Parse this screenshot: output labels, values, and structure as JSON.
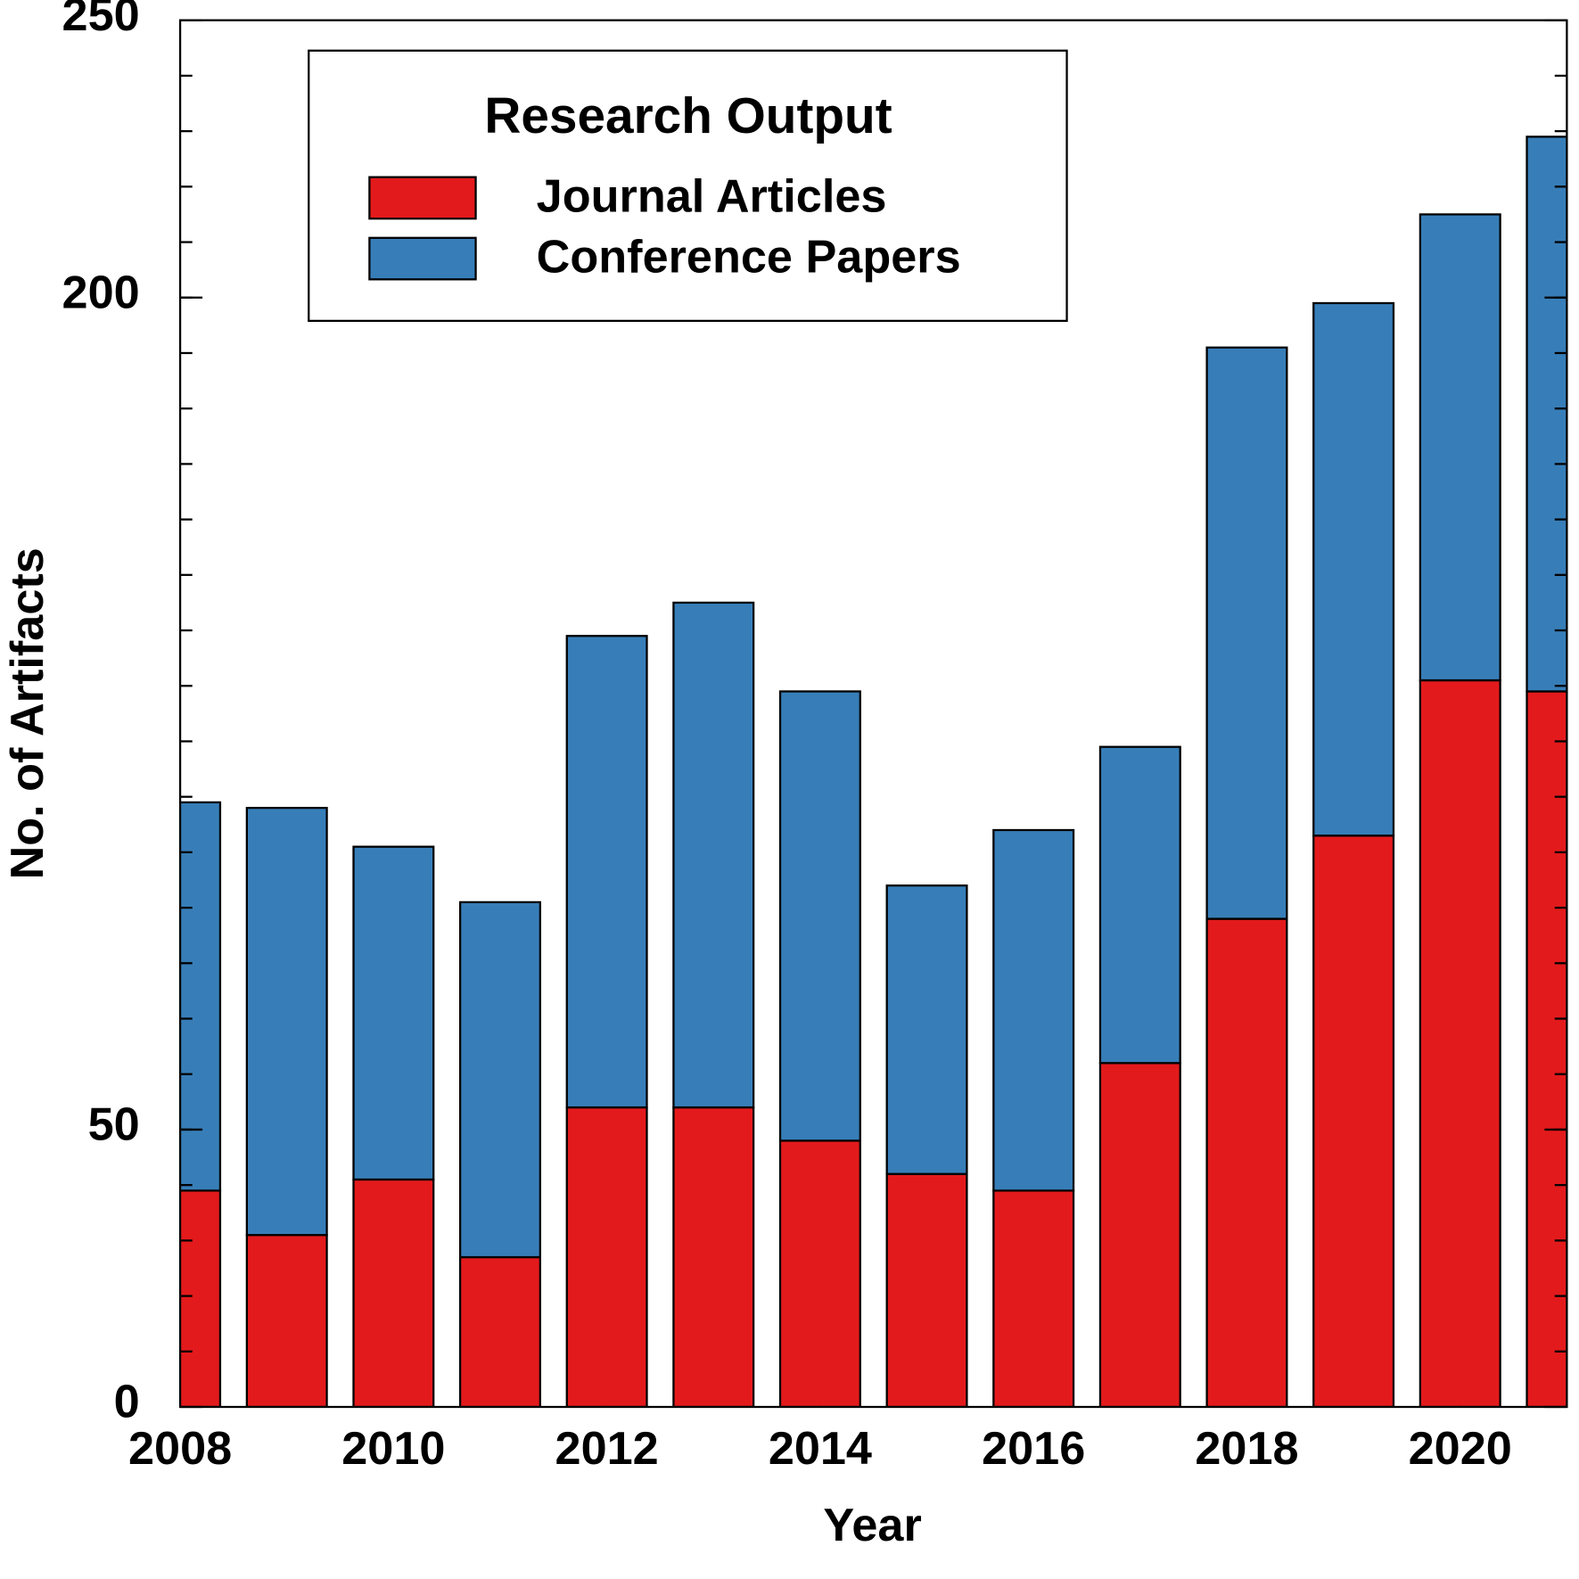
{
  "chart_data": {
    "type": "stacked_bar",
    "legend_title": "Research Output",
    "x_label": "Year",
    "y_label": "No. of Artifacts",
    "x": [
      2008,
      2009,
      2010,
      2011,
      2012,
      2013,
      2014,
      2015,
      2016,
      2017,
      2018,
      2019,
      2020,
      2021
    ],
    "series": [
      {
        "name": "Journal Articles",
        "color": "#e31a1c",
        "values": [
          39,
          31,
          41,
          27,
          54,
          54,
          48,
          42,
          39,
          62,
          88,
          103,
          131,
          129
        ]
      },
      {
        "name": "Conference Papers",
        "color": "#377eb8",
        "values": [
          70,
          77,
          60,
          64,
          85,
          91,
          81,
          52,
          65,
          57,
          103,
          96,
          84,
          100
        ]
      }
    ],
    "xlim": [
      2008,
      2021
    ],
    "xticks": [
      2008,
      2010,
      2012,
      2014,
      2016,
      2018,
      2020
    ],
    "ylim": [
      0,
      250
    ],
    "yticks": [
      0,
      50,
      200,
      250
    ],
    "legend": "upper left"
  }
}
